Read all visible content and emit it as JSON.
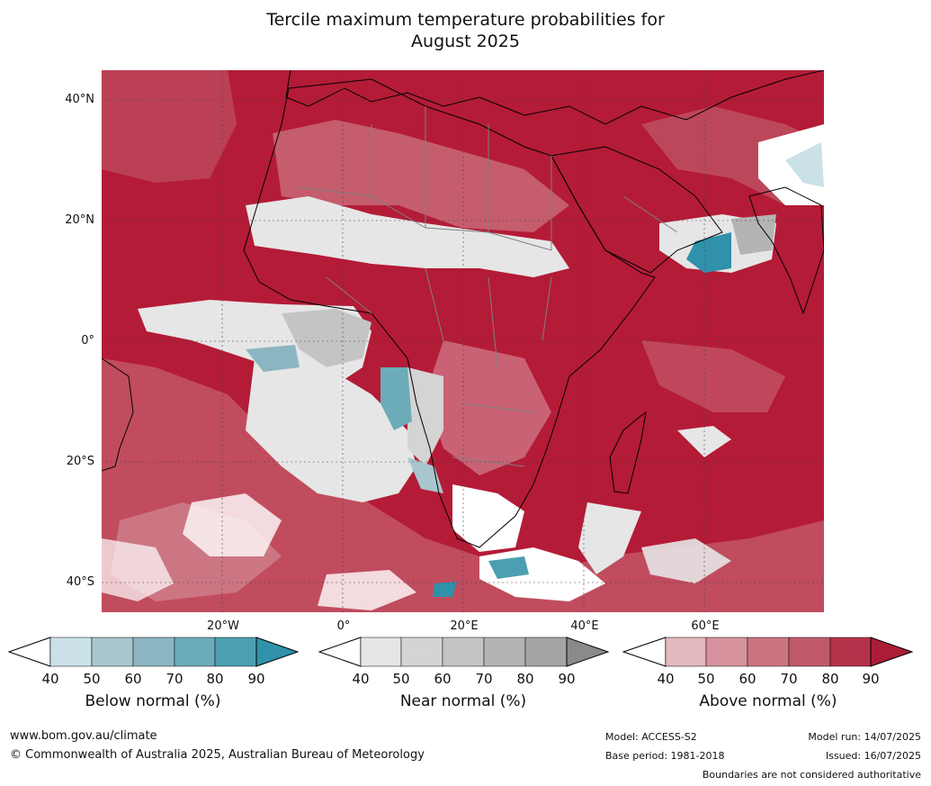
{
  "title": {
    "line1": "Tercile maximum temperature probabilities for",
    "line2": "August 2025"
  },
  "axes": {
    "lat_labels": [
      "40°N",
      "20°N",
      "0°",
      "20°S",
      "40°S"
    ],
    "lon_labels": [
      "20°W",
      "0°",
      "20°E",
      "40°E",
      "60°E"
    ]
  },
  "colors": {
    "ocean_red": "#b41b37",
    "above": [
      "#e3b8bf",
      "#d6929d",
      "#cb7480",
      "#c05a69",
      "#b5334a",
      "#ab1d36"
    ],
    "near": [
      "#e6e6e6",
      "#d4d4d4",
      "#c4c4c4",
      "#b4b4b4",
      "#a4a4a4",
      "#8a8a8a"
    ],
    "below": [
      "#c9e1e7",
      "#a8c6cd",
      "#8bb6c1",
      "#6bacb8",
      "#4c9fb1",
      "#2f92aa"
    ]
  },
  "colorbars": {
    "below": {
      "label": "Below normal (%)",
      "ticks": [
        "40",
        "50",
        "60",
        "70",
        "80",
        "90"
      ]
    },
    "near": {
      "label": "Near normal (%)",
      "ticks": [
        "40",
        "50",
        "60",
        "70",
        "80",
        "90"
      ]
    },
    "above": {
      "label": "Above normal (%)",
      "ticks": [
        "40",
        "50",
        "60",
        "70",
        "80",
        "90"
      ]
    }
  },
  "footer": {
    "url": "www.bom.gov.au/climate",
    "copyright": "© Commonwealth of Australia 2025, Australian Bureau of Meteorology",
    "model": "Model: ACCESS-S2",
    "base_period": "Base period: 1981-2018",
    "model_run": "Model run: 14/07/2025",
    "issued": "Issued: 16/07/2025",
    "disclaimer": "Boundaries are not considered authoritative"
  }
}
